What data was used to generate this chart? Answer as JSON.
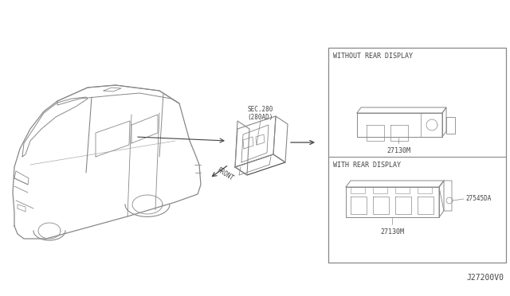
{
  "bg_color": "#ffffff",
  "line_color": "#888888",
  "line_color_dark": "#444444",
  "text_color": "#444444",
  "title_bottom_right": "J27200V0",
  "sec_label": "SEC.280\n(280AD)",
  "front_label": "FRONT",
  "part1_label": "27130M",
  "part2_label": "27130M",
  "part3_label": "27545DA",
  "box1_title": "WITHOUT REAR DISPLAY",
  "box2_title": "WITH REAR DISPLAY",
  "fig_width": 6.4,
  "fig_height": 3.72
}
